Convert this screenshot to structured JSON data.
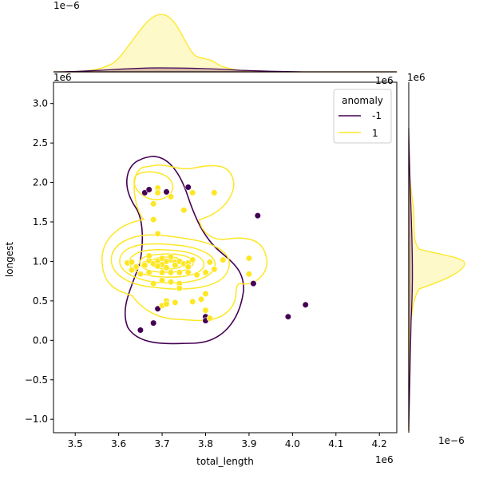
{
  "chart_data": {
    "type": "scatter",
    "subtype": "jointplot-kde",
    "xlabel": "total_length",
    "ylabel": "longest",
    "x_offset_label": "1e6",
    "y_offset_label": "1e6",
    "top_marginal_offset_label": "1e−6",
    "right_marginal_offset_label": "1e−6",
    "xlim": [
      3.45,
      4.24
    ],
    "ylim": [
      -1.17,
      3.27
    ],
    "xticks": [
      "3.5",
      "3.6",
      "3.7",
      "3.8",
      "3.9",
      "4.0",
      "4.1",
      "4.2"
    ],
    "yticks": [
      "−1.0",
      "−0.5",
      "0.0",
      "0.5",
      "1.0",
      "1.5",
      "2.0",
      "2.5",
      "3.0"
    ],
    "legend": {
      "title": "anomaly",
      "placement": "top-right",
      "entries": [
        {
          "label": "-1",
          "color": "#440154"
        },
        {
          "label": "1",
          "color": "#fde725"
        }
      ]
    },
    "series": [
      {
        "name": "-1",
        "color": "#440154",
        "points": [
          [
            3.66,
            1.87
          ],
          [
            3.67,
            1.91
          ],
          [
            3.71,
            1.88
          ],
          [
            3.76,
            1.94
          ],
          [
            3.92,
            1.58
          ],
          [
            3.8,
            0.3
          ],
          [
            3.8,
            0.25
          ],
          [
            3.69,
            0.4
          ],
          [
            3.68,
            0.22
          ],
          [
            3.65,
            0.13
          ],
          [
            3.99,
            0.3
          ],
          [
            4.03,
            0.45
          ],
          [
            3.91,
            0.72
          ]
        ]
      },
      {
        "name": "1",
        "color": "#fde725",
        "points": [
          [
            3.69,
            1.93
          ],
          [
            3.69,
            1.87
          ],
          [
            3.72,
            1.82
          ],
          [
            3.77,
            1.87
          ],
          [
            3.82,
            1.87
          ],
          [
            3.68,
            1.73
          ],
          [
            3.68,
            1.53
          ],
          [
            3.75,
            1.65
          ],
          [
            3.69,
            1.35
          ],
          [
            3.62,
            0.98
          ],
          [
            3.63,
            0.99
          ],
          [
            3.64,
            0.93
          ],
          [
            3.66,
            0.97
          ],
          [
            3.67,
            1.01
          ],
          [
            3.68,
            0.97
          ],
          [
            3.69,
            1.0
          ],
          [
            3.7,
            0.96
          ],
          [
            3.71,
            1.0
          ],
          [
            3.72,
            1.02
          ],
          [
            3.73,
            0.99
          ],
          [
            3.74,
            1.0
          ],
          [
            3.75,
            0.97
          ],
          [
            3.76,
            0.98
          ],
          [
            3.77,
            1.02
          ],
          [
            3.7,
            1.04
          ],
          [
            3.72,
            1.06
          ],
          [
            3.66,
            0.95
          ],
          [
            3.67,
            1.07
          ],
          [
            3.69,
            0.94
          ],
          [
            3.71,
            0.92
          ],
          [
            3.73,
            0.95
          ],
          [
            3.76,
            0.93
          ],
          [
            3.63,
            0.89
          ],
          [
            3.65,
            0.84
          ],
          [
            3.67,
            0.86
          ],
          [
            3.7,
            0.86
          ],
          [
            3.72,
            0.86
          ],
          [
            3.74,
            0.86
          ],
          [
            3.76,
            0.86
          ],
          [
            3.78,
            0.83
          ],
          [
            3.8,
            0.86
          ],
          [
            3.82,
            0.9
          ],
          [
            3.81,
            0.99
          ],
          [
            3.84,
            1.02
          ],
          [
            3.9,
            1.04
          ],
          [
            3.9,
            0.84
          ],
          [
            3.68,
            0.72
          ],
          [
            3.7,
            0.76
          ],
          [
            3.72,
            0.74
          ],
          [
            3.74,
            0.72
          ],
          [
            3.8,
            0.59
          ],
          [
            3.79,
            0.52
          ],
          [
            3.74,
            0.66
          ],
          [
            3.71,
            0.5
          ],
          [
            3.7,
            0.44
          ],
          [
            3.71,
            0.46
          ],
          [
            3.73,
            0.48
          ],
          [
            3.77,
            0.49
          ],
          [
            3.8,
            0.38
          ],
          [
            3.81,
            0.28
          ]
        ]
      }
    ],
    "marginal_top": {
      "series": [
        {
          "name": "1",
          "peak_x": 3.7,
          "peak_density": 2.3e-06
        },
        {
          "name": "-1",
          "peak_x": 3.72,
          "peak_density": 2e-07
        }
      ]
    },
    "marginal_right": {
      "series": [
        {
          "name": "1",
          "peak_y": 0.96,
          "peak_density": 2.5e-06
        },
        {
          "name": "-1",
          "peak_y": 1.0,
          "peak_density": 1e-07
        }
      ]
    }
  }
}
